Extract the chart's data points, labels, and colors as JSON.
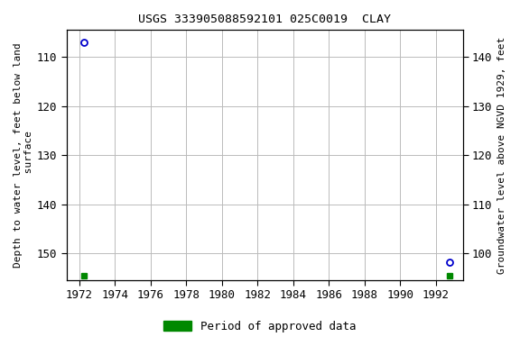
{
  "title": "USGS 333905088592101 025C0019  CLAY",
  "ylabel_left": "Depth to water level, feet below land\n surface",
  "ylabel_right": "Groundwater level above NGVD 1929, feet",
  "ylim_left": [
    104.5,
    155.5
  ],
  "xlim": [
    1971.3,
    1993.5
  ],
  "xticks": [
    1972,
    1974,
    1976,
    1978,
    1980,
    1982,
    1984,
    1986,
    1988,
    1990,
    1992
  ],
  "yticks_left": [
    110,
    120,
    130,
    140,
    150
  ],
  "yticks_right_positions": [
    110,
    120,
    130,
    140,
    150
  ],
  "yticks_right_labels": [
    "140",
    "130",
    "120",
    "110",
    "100"
  ],
  "data_x": [
    1972.3,
    1992.75
  ],
  "data_y": [
    107.0,
    151.8
  ],
  "green_x": [
    1972.3,
    1992.75
  ],
  "green_y": [
    154.5,
    154.5
  ],
  "point_color": "#0000cc",
  "green_color": "#008800",
  "bg_color": "#ffffff",
  "grid_color": "#bbbbbb",
  "legend_label": "Period of approved data",
  "title_fontsize": 9.5,
  "tick_fontsize": 9,
  "label_fontsize": 8
}
